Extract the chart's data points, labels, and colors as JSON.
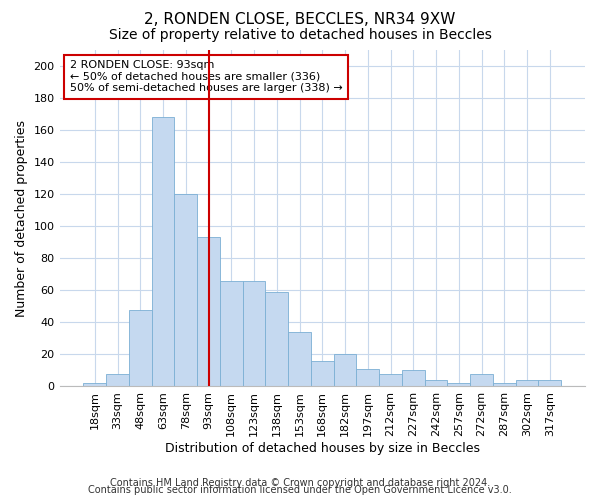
{
  "title1": "2, RONDEN CLOSE, BECCLES, NR34 9XW",
  "title2": "Size of property relative to detached houses in Beccles",
  "xlabel": "Distribution of detached houses by size in Beccles",
  "ylabel": "Number of detached properties",
  "footer1": "Contains HM Land Registry data © Crown copyright and database right 2024.",
  "footer2": "Contains public sector information licensed under the Open Government Licence v3.0.",
  "bar_labels": [
    "18sqm",
    "33sqm",
    "48sqm",
    "63sqm",
    "78sqm",
    "93sqm",
    "108sqm",
    "123sqm",
    "138sqm",
    "153sqm",
    "168sqm",
    "182sqm",
    "197sqm",
    "212sqm",
    "227sqm",
    "242sqm",
    "257sqm",
    "272sqm",
    "287sqm",
    "302sqm",
    "317sqm"
  ],
  "bar_values": [
    2,
    8,
    48,
    168,
    120,
    93,
    66,
    66,
    59,
    34,
    16,
    20,
    11,
    8,
    10,
    4,
    2,
    8,
    2,
    4,
    4
  ],
  "bar_color": "#c5d9f0",
  "bar_edge_color": "#7bafd4",
  "annotation_line1": "2 RONDEN CLOSE: 93sqm",
  "annotation_line2": "← 50% of detached houses are smaller (336)",
  "annotation_line3": "50% of semi-detached houses are larger (338) →",
  "vline_color": "#cc0000",
  "annotation_box_facecolor": "#ffffff",
  "annotation_box_edgecolor": "#cc0000",
  "ylim": [
    0,
    210
  ],
  "yticks": [
    0,
    20,
    40,
    60,
    80,
    100,
    120,
    140,
    160,
    180,
    200
  ],
  "bg_color": "#ffffff",
  "plot_bg_color": "#ffffff",
  "grid_color": "#c8d8ec",
  "title1_fontsize": 11,
  "title2_fontsize": 10,
  "xlabel_fontsize": 9,
  "ylabel_fontsize": 9,
  "tick_fontsize": 8,
  "footer_fontsize": 7
}
